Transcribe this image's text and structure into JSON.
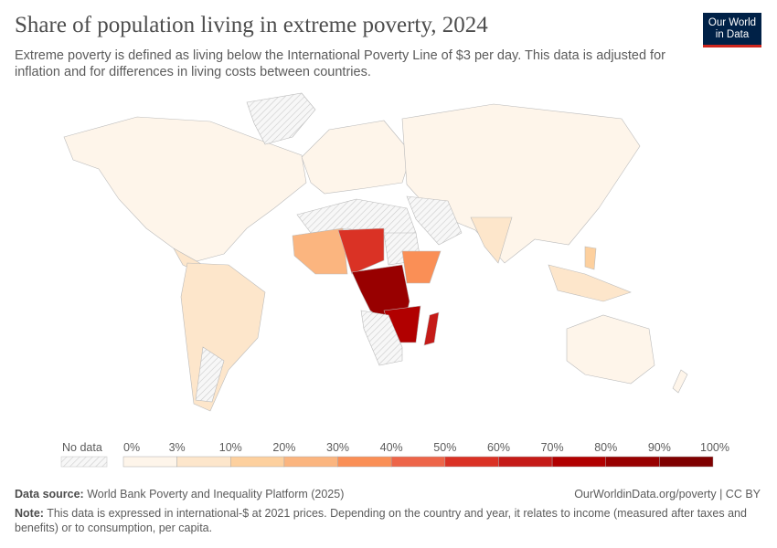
{
  "title": "Share of population living in extreme poverty, 2024",
  "subtitle": "Extreme poverty is defined as living below the International Poverty Line of $3 per day. This data is adjusted for inflation and for differences in living costs between countries.",
  "logo": {
    "line1": "Our World",
    "line2": "in Data",
    "bg": "#002147",
    "accent": "#ce261e"
  },
  "legend": {
    "no_data_label": "No data",
    "ticks": [
      "0%",
      "3%",
      "10%",
      "20%",
      "30%",
      "40%",
      "50%",
      "60%",
      "70%",
      "80%",
      "90%",
      "100%"
    ],
    "colors": [
      "#fef5ea",
      "#fde6cb",
      "#fdd09e",
      "#fbb57f",
      "#fa8f56",
      "#ed6549",
      "#da3225",
      "#c51b18",
      "#b10000",
      "#980000",
      "#7f0000"
    ]
  },
  "footer": {
    "source_label": "Data source:",
    "source": "World Bank Poverty and Inequality Platform (2025)",
    "url": "OurWorldinData.org/poverty | CC BY",
    "note_label": "Note:",
    "note": "This data is expressed in international-$ at 2021 prices. Depending on the country and year, it relates to income (measured after taxes and benefits) or to consumption, per capita."
  }
}
